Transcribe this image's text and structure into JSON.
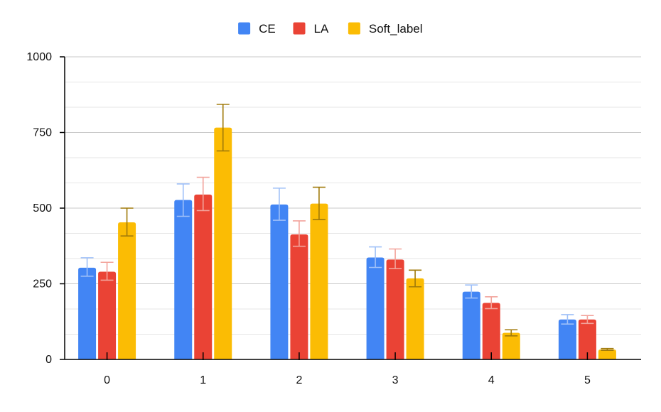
{
  "chart_data": {
    "type": "bar",
    "title": "",
    "xlabel": "",
    "ylabel": "",
    "categories": [
      "0",
      "1",
      "2",
      "3",
      "4",
      "5"
    ],
    "ylim": [
      0,
      1000
    ],
    "yticks": [
      0,
      250,
      500,
      750,
      1000
    ],
    "minor_gridlines": true,
    "legend_position": "top-center",
    "series": [
      {
        "name": "CE",
        "color": "#4285F4",
        "error_color": "#9FC0F8",
        "values": [
          303,
          527,
          512,
          337,
          224,
          132
        ],
        "error_low": [
          275,
          473,
          460,
          304,
          203,
          117
        ],
        "error_high": [
          336,
          580,
          566,
          372,
          246,
          148
        ]
      },
      {
        "name": "LA",
        "color": "#EA4335",
        "error_color": "#F2A39B",
        "values": [
          290,
          545,
          413,
          330,
          187,
          132
        ],
        "error_low": [
          262,
          492,
          374,
          300,
          168,
          119
        ],
        "error_high": [
          321,
          602,
          458,
          365,
          207,
          145
        ]
      },
      {
        "name": "Soft_label",
        "color": "#FBBC04",
        "error_color": "#A07A0A",
        "values": [
          453,
          766,
          515,
          268,
          88,
          33
        ],
        "error_low": [
          408,
          689,
          462,
          240,
          78,
          30
        ],
        "error_high": [
          500,
          843,
          569,
          295,
          98,
          36
        ]
      }
    ]
  }
}
